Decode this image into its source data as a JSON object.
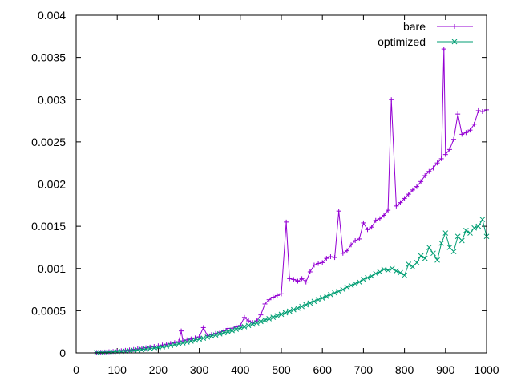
{
  "chart_data": {
    "type": "line",
    "title": "",
    "xlabel": "",
    "ylabel": "",
    "xlim": [
      0,
      1000
    ],
    "ylim": [
      0,
      0.004
    ],
    "xticks": [
      0,
      100,
      200,
      300,
      400,
      500,
      600,
      700,
      800,
      900,
      1000
    ],
    "yticks": [
      0,
      0.0005,
      0.001,
      0.0015,
      0.002,
      0.0025,
      0.003,
      0.0035,
      0.004
    ],
    "xtick_labels": [
      "0",
      "100",
      "200",
      "300",
      "400",
      "500",
      "600",
      "700",
      "800",
      "900",
      "1000"
    ],
    "ytick_labels": [
      "0",
      "0.0005",
      "0.001",
      "0.0015",
      "0.002",
      "0.0025",
      "0.003",
      "0.0035",
      "0.004"
    ],
    "grid": false,
    "legend_position": "top-right",
    "series": [
      {
        "name": "bare",
        "color": "#9400d3",
        "marker": "plus",
        "x": [
          50,
          60,
          70,
          80,
          90,
          100,
          110,
          120,
          130,
          140,
          150,
          160,
          170,
          180,
          190,
          200,
          210,
          220,
          230,
          240,
          250,
          256,
          260,
          270,
          280,
          290,
          300,
          310,
          320,
          330,
          340,
          350,
          360,
          370,
          380,
          390,
          400,
          410,
          420,
          430,
          440,
          450,
          460,
          470,
          480,
          490,
          500,
          512,
          520,
          530,
          540,
          550,
          560,
          570,
          580,
          590,
          600,
          610,
          620,
          630,
          640,
          650,
          660,
          670,
          680,
          690,
          700,
          710,
          720,
          730,
          740,
          750,
          760,
          768,
          780,
          790,
          800,
          810,
          820,
          830,
          840,
          850,
          860,
          870,
          880,
          890,
          896,
          900,
          910,
          920,
          930,
          940,
          950,
          960,
          970,
          980,
          990,
          1000
        ],
        "y": [
          5.2e-06,
          7.7e-06,
          1.01e-05,
          1.33e-05,
          1.68e-05,
          2.08e-05,
          2.5e-05,
          2.98e-05,
          3.52e-05,
          4.06e-05,
          4.74e-05,
          5.4e-05,
          6.06e-05,
          6.78e-05,
          7.55e-05,
          8.35e-05,
          9.26e-05,
          0.000102,
          0.000111,
          0.000121,
          0.000132,
          0.00026,
          0.000142,
          0.000154,
          0.000165,
          0.000177,
          0.00019,
          0.0003,
          0.000203,
          0.000217,
          0.000231,
          0.000246,
          0.000261,
          0.00029,
          0.000292,
          0.000308,
          0.000325,
          0.00042,
          0.00038,
          0.00036,
          0.00038,
          0.00045,
          0.00058,
          0.00063,
          0.00066,
          0.00068,
          0.0007,
          0.00155,
          0.00088,
          0.00087,
          0.00085,
          0.00088,
          0.00084,
          0.00096,
          0.00104,
          0.00106,
          0.00107,
          0.00112,
          0.00114,
          0.00113,
          0.00168,
          0.00118,
          0.00121,
          0.00128,
          0.00133,
          0.00135,
          0.00154,
          0.00146,
          0.00149,
          0.00157,
          0.00159,
          0.00163,
          0.00169,
          0.003,
          0.00174,
          0.00178,
          0.00183,
          0.00188,
          0.00193,
          0.00197,
          0.00203,
          0.0021,
          0.00215,
          0.00219,
          0.00225,
          0.0023,
          0.0036,
          0.00235,
          0.00241,
          0.00253,
          0.00283,
          0.00259,
          0.00261,
          0.00264,
          0.00271,
          0.00287,
          0.00286,
          0.00288
        ]
      },
      {
        "name": "optimized",
        "color": "#009e73",
        "marker": "x",
        "x": [
          50,
          60,
          70,
          80,
          90,
          100,
          110,
          120,
          130,
          140,
          150,
          160,
          170,
          180,
          190,
          200,
          210,
          220,
          230,
          240,
          250,
          260,
          270,
          280,
          290,
          300,
          310,
          320,
          330,
          340,
          350,
          360,
          370,
          380,
          390,
          400,
          410,
          420,
          430,
          440,
          450,
          460,
          470,
          480,
          490,
          500,
          510,
          520,
          530,
          540,
          550,
          560,
          570,
          580,
          590,
          600,
          610,
          620,
          630,
          640,
          650,
          660,
          670,
          680,
          690,
          700,
          710,
          720,
          730,
          740,
          750,
          760,
          770,
          780,
          790,
          800,
          810,
          820,
          830,
          840,
          850,
          860,
          870,
          880,
          890,
          900,
          910,
          920,
          930,
          940,
          950,
          960,
          970,
          980,
          990,
          1000
        ],
        "y": [
          4e-06,
          5.8e-06,
          7.8e-06,
          1.01e-05,
          1.26e-05,
          1.56e-05,
          1.88e-05,
          2.24e-05,
          2.62e-05,
          3.05e-05,
          3.52e-05,
          4.03e-05,
          4.56e-05,
          5.1e-05,
          5.7e-05,
          6.4e-05,
          7.2e-05,
          8e-05,
          8.9e-05,
          9.8e-05,
          0.000108,
          0.000118,
          0.000128,
          0.000139,
          0.000151,
          0.000162,
          0.000174,
          0.000187,
          0.0002,
          0.000212,
          0.000225,
          0.000238,
          0.000252,
          0.000265,
          0.00028,
          0.000295,
          0.00031,
          0.000325,
          0.00034,
          0.000355,
          0.000372,
          0.000388,
          0.000405,
          0.000422,
          0.00044,
          0.000457,
          0.000475,
          0.000494,
          0.000512,
          0.00053,
          0.00055,
          0.00057,
          0.00059,
          0.00061,
          0.00063,
          0.00065,
          0.00067,
          0.00069,
          0.00071,
          0.00073,
          0.00075,
          0.00078,
          0.0008,
          0.00082,
          0.00084,
          0.00087,
          0.00089,
          0.00091,
          0.00094,
          0.00096,
          0.00099,
          0.00098,
          0.001,
          0.00097,
          0.00095,
          0.00092,
          0.00105,
          0.00102,
          0.00107,
          0.00115,
          0.00112,
          0.00125,
          0.00118,
          0.0011,
          0.0013,
          0.00142,
          0.00125,
          0.0012,
          0.00138,
          0.00133,
          0.00145,
          0.00142,
          0.00148,
          0.0015,
          0.00158,
          0.00138
        ]
      }
    ]
  }
}
